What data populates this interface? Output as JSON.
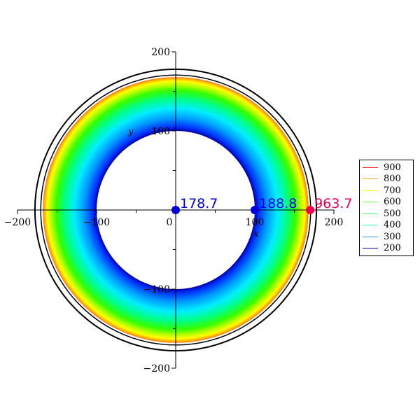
{
  "chart_data": {
    "type": "contour",
    "xlabel": "x",
    "ylabel": "y",
    "xlim": [
      -200,
      200
    ],
    "ylim": [
      -200,
      200
    ],
    "x_ticks": [
      -200,
      -100,
      0,
      100,
      200
    ],
    "y_ticks": [
      -200,
      -100,
      100,
      200
    ],
    "x_tick_labels": [
      "−200",
      "−100",
      "0",
      "100",
      "200"
    ],
    "y_tick_labels": [
      "−200",
      "100",
      "−100",
      "200"
    ],
    "y_tick_values": [
      -200,
      100,
      -100,
      200
    ],
    "inner_radius": 100,
    "outer_radius": 168,
    "boundary_radius": 178,
    "levels": [
      900,
      800,
      700,
      600,
      500,
      400,
      300,
      200
    ],
    "level_colors": [
      "#ff2020",
      "#ff9900",
      "#ffff00",
      "#66ff33",
      "#33ff66",
      "#33ffdd",
      "#2299ff",
      "#0000bb"
    ],
    "legend_placement": "right",
    "points": [
      {
        "x": 0,
        "y": 0,
        "label": "178.7",
        "color": "#0000dd"
      },
      {
        "x": 100,
        "y": 0,
        "label": "188.8",
        "color": "#0000dd"
      },
      {
        "x": 170,
        "y": 0,
        "label": "963.7",
        "color": "#ee0055"
      }
    ]
  }
}
